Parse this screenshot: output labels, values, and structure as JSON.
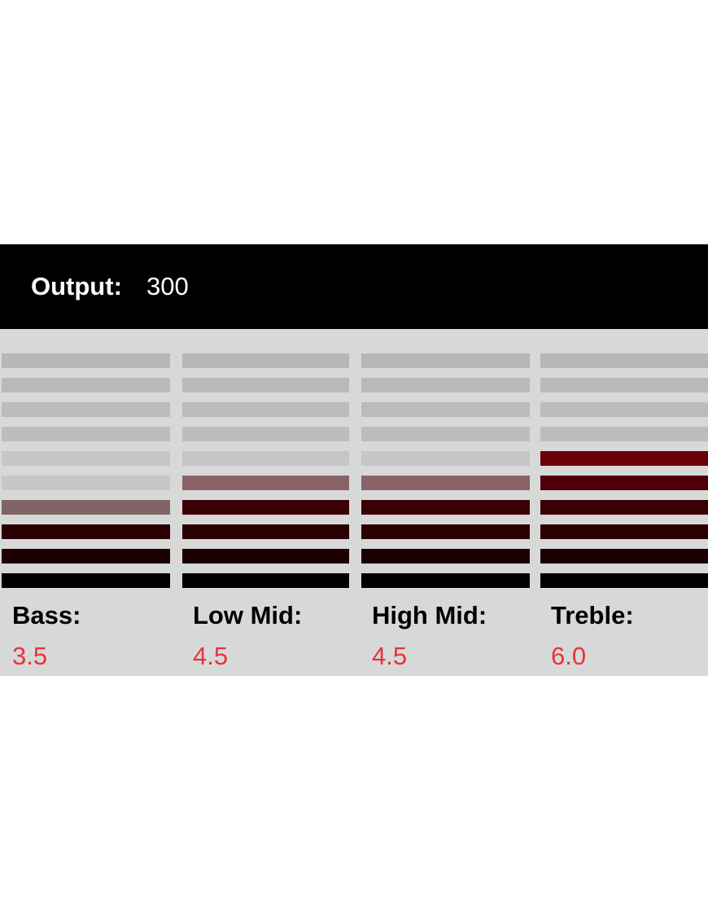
{
  "output": {
    "label": "Output:",
    "value": "300"
  },
  "bands": [
    {
      "label": "Bass:",
      "value": "3.5"
    },
    {
      "label": "Low Mid:",
      "value": "4.5"
    },
    {
      "label": "High Mid:",
      "value": "4.5"
    },
    {
      "label": "Treble:",
      "value": "6.0"
    }
  ]
}
